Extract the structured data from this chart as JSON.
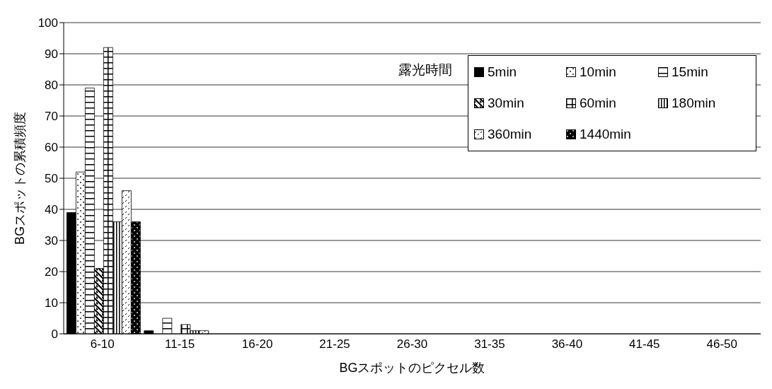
{
  "chart_data": {
    "type": "bar",
    "xlabel": "BGスポットのピクセル数",
    "ylabel": "BGスポットの累積頻度",
    "legend_title": "露光時間",
    "categories": [
      "6-10",
      "11-15",
      "16-20",
      "21-25",
      "26-30",
      "31-35",
      "36-40",
      "41-45",
      "46-50"
    ],
    "series": [
      {
        "name": "5min",
        "color": "#000000",
        "values": [
          39,
          1,
          0,
          0,
          0,
          0,
          0,
          0,
          0
        ]
      },
      {
        "name": "10min",
        "color": "#000000",
        "values": [
          52,
          0,
          0,
          0,
          0,
          0,
          0,
          0,
          0
        ]
      },
      {
        "name": "15min",
        "color": "#000000",
        "values": [
          79,
          5,
          0,
          0,
          0,
          0,
          0,
          0,
          0
        ]
      },
      {
        "name": "30min",
        "color": "#000000",
        "values": [
          21,
          0,
          0,
          0,
          0,
          0,
          0,
          0,
          0
        ]
      },
      {
        "name": "60min",
        "color": "#000000",
        "values": [
          92,
          3,
          0,
          0,
          0,
          0,
          0,
          0,
          0
        ]
      },
      {
        "name": "180min",
        "color": "#000000",
        "values": [
          36,
          1,
          0,
          0,
          0,
          0,
          0,
          0,
          0
        ]
      },
      {
        "name": "360min",
        "color": "#000000",
        "values": [
          46,
          1,
          0,
          0,
          0,
          0,
          0,
          0,
          0
        ]
      },
      {
        "name": "1440min",
        "color": "#000000",
        "values": [
          36,
          0,
          0,
          0,
          0,
          0,
          0,
          0,
          0
        ]
      }
    ],
    "ylim": [
      0,
      100
    ],
    "yticks": [
      0,
      10,
      20,
      30,
      40,
      50,
      60,
      70,
      80,
      90,
      100
    ],
    "grid": "y",
    "legend": "top right"
  }
}
